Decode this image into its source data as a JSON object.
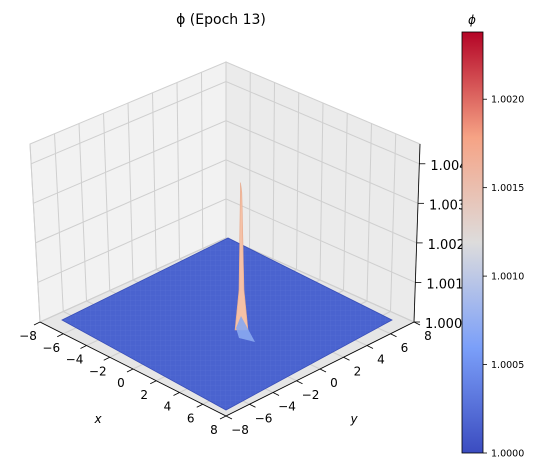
{
  "chart_data": {
    "type": "surface3d",
    "title": "ϕ (Epoch 13)",
    "xlabel": "x",
    "ylabel": "y",
    "zlabel": "",
    "x_ticks": [
      "−8",
      "−6",
      "−4",
      "−2",
      "0",
      "2",
      "4",
      "6",
      "8"
    ],
    "y_ticks": [
      "−8",
      "−6",
      "−4",
      "−2",
      "0",
      "2",
      "4",
      "6",
      "8"
    ],
    "z_ticks": [
      "1.000",
      "1.001",
      "1.002",
      "1.003",
      "1.004"
    ],
    "xlim": [
      -8,
      8
    ],
    "ylim": [
      -8,
      8
    ],
    "zlim": [
      1.0,
      1.0045
    ],
    "surface": {
      "baseline": 1.0,
      "peak_value": 1.0043,
      "peak_location": [
        0,
        0
      ],
      "surface_color": "#4a63cf",
      "peak_color": "#f5c1a6"
    },
    "colorbar": {
      "title": "ϕ",
      "min": 1.0,
      "max": 1.00238,
      "ticks": [
        "1.0000",
        "1.0005",
        "1.0010",
        "1.0015",
        "1.0020"
      ],
      "cmap": "coolwarm"
    },
    "grid": true
  }
}
